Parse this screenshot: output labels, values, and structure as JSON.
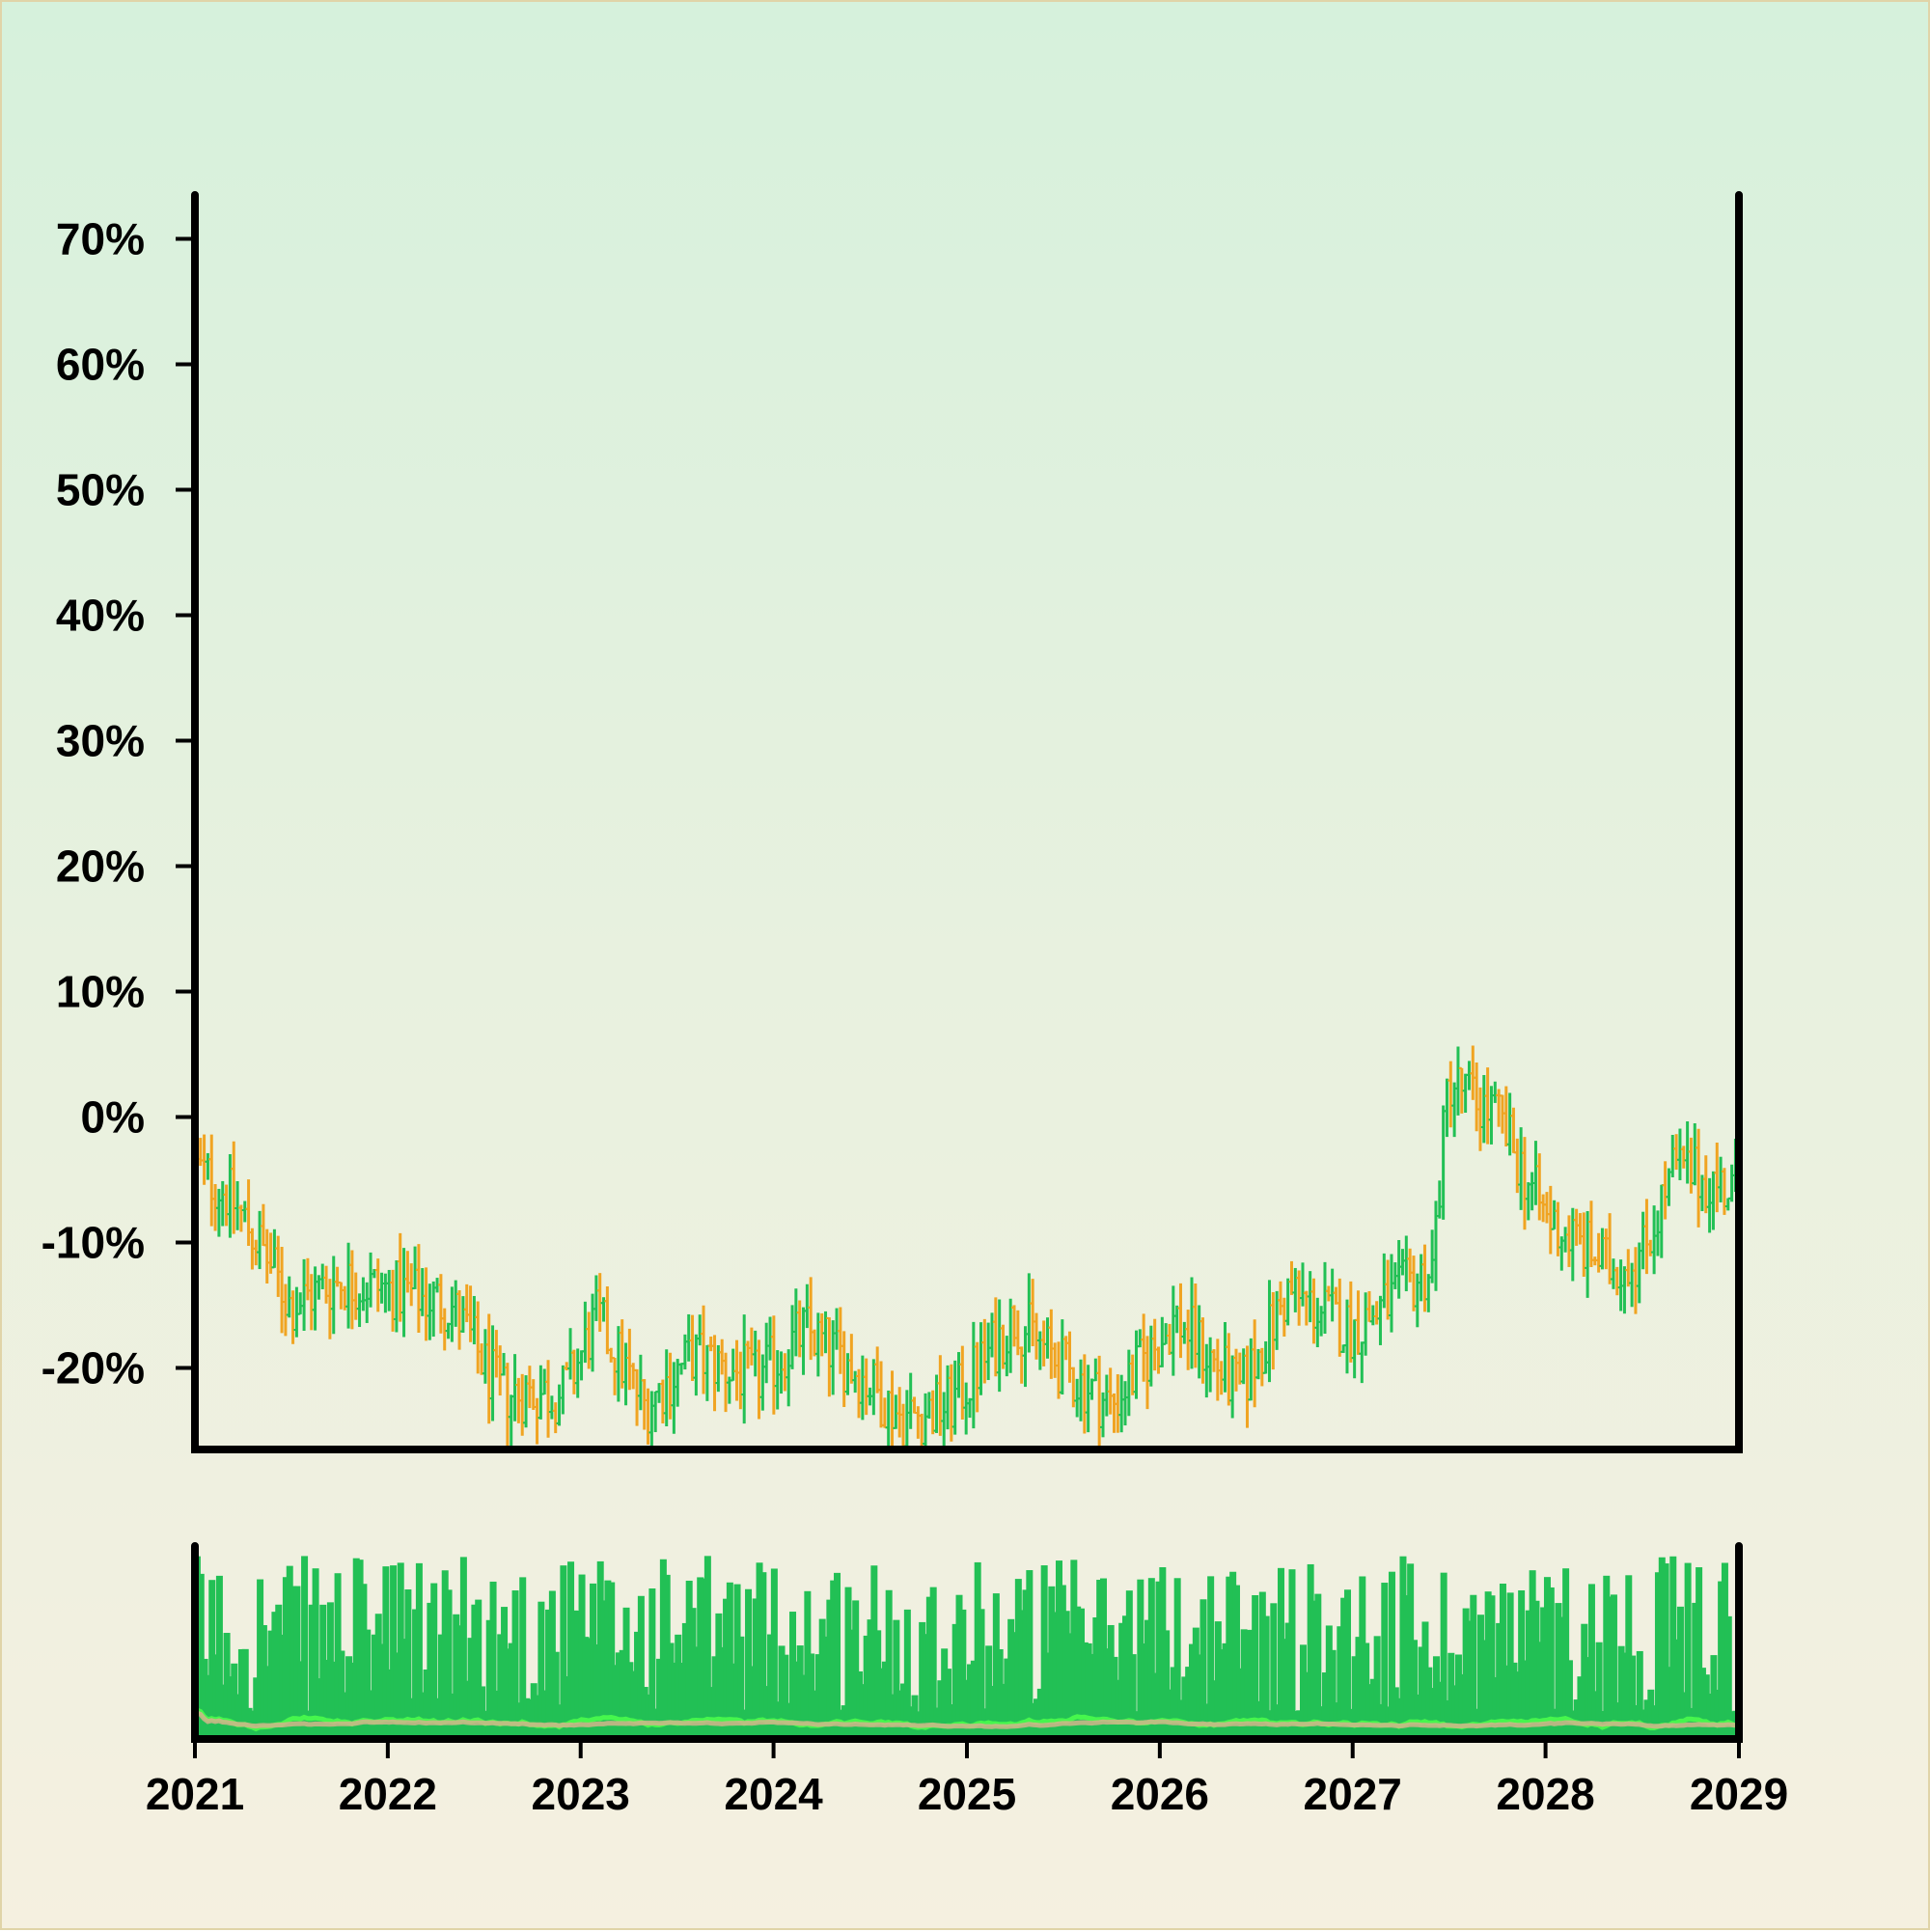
{
  "chart_data": {
    "type": "ohlc",
    "title": "",
    "xlabel": "",
    "ylabel": "",
    "x_range": [
      "2021-01-01",
      "2029-01-01"
    ],
    "ylim": [
      -26.5,
      73.5
    ],
    "y_ticks": [
      "-20%",
      "-10%",
      "0%",
      "10%",
      "20%",
      "30%",
      "40%",
      "50%",
      "60%",
      "70%"
    ],
    "y_tick_values": [
      -20,
      -10,
      0,
      10,
      20,
      30,
      40,
      50,
      60,
      70
    ],
    "x_ticks": [
      "2021",
      "2022",
      "2023",
      "2024",
      "2025",
      "2026",
      "2027",
      "2028",
      "2029"
    ],
    "x_tick_dates": [
      "2021-01-01",
      "2022-01-01",
      "2023-01-01",
      "2024-01-01",
      "2025-01-01",
      "2026-01-01",
      "2027-01-01",
      "2028-01-01",
      "2029-01-01"
    ],
    "frequency": "weekly",
    "up_color": "#22c055",
    "down_color": "#f0a422",
    "close_anchors": [
      {
        "date": "2021-01-01",
        "value": -4
      },
      {
        "date": "2021-03-01",
        "value": -6
      },
      {
        "date": "2021-05-01",
        "value": -10
      },
      {
        "date": "2021-07-01",
        "value": -15
      },
      {
        "date": "2021-10-01",
        "value": -13
      },
      {
        "date": "2022-02-01",
        "value": -14
      },
      {
        "date": "2022-05-01",
        "value": -15
      },
      {
        "date": "2022-08-01",
        "value": -22
      },
      {
        "date": "2022-12-01",
        "value": -22
      },
      {
        "date": "2023-02-01",
        "value": -16
      },
      {
        "date": "2023-05-01",
        "value": -23
      },
      {
        "date": "2023-08-01",
        "value": -19
      },
      {
        "date": "2023-12-01",
        "value": -21
      },
      {
        "date": "2024-03-01",
        "value": -17
      },
      {
        "date": "2024-06-01",
        "value": -20
      },
      {
        "date": "2024-09-01",
        "value": -24
      },
      {
        "date": "2024-12-01",
        "value": -23
      },
      {
        "date": "2025-04-01",
        "value": -16
      },
      {
        "date": "2025-07-01",
        "value": -20
      },
      {
        "date": "2025-10-01",
        "value": -23
      },
      {
        "date": "2026-02-01",
        "value": -16
      },
      {
        "date": "2026-06-01",
        "value": -22
      },
      {
        "date": "2026-09-01",
        "value": -14
      },
      {
        "date": "2027-01-01",
        "value": -17
      },
      {
        "date": "2027-06-01",
        "value": -12
      },
      {
        "date": "2027-07-01",
        "value": 3
      },
      {
        "date": "2027-10-01",
        "value": 0
      },
      {
        "date": "2028-01-01",
        "value": -8
      },
      {
        "date": "2028-05-01",
        "value": -12
      },
      {
        "date": "2028-07-01",
        "value": -11
      },
      {
        "date": "2028-09-01",
        "value": -4
      },
      {
        "date": "2029-01-01",
        "value": -6
      }
    ],
    "volume": {
      "color": "#22c055",
      "moving_average_colors": [
        "#4cff4c",
        "#d2b48c"
      ],
      "has_y_axis_labels": false
    },
    "grid": false,
    "legend": "none"
  }
}
